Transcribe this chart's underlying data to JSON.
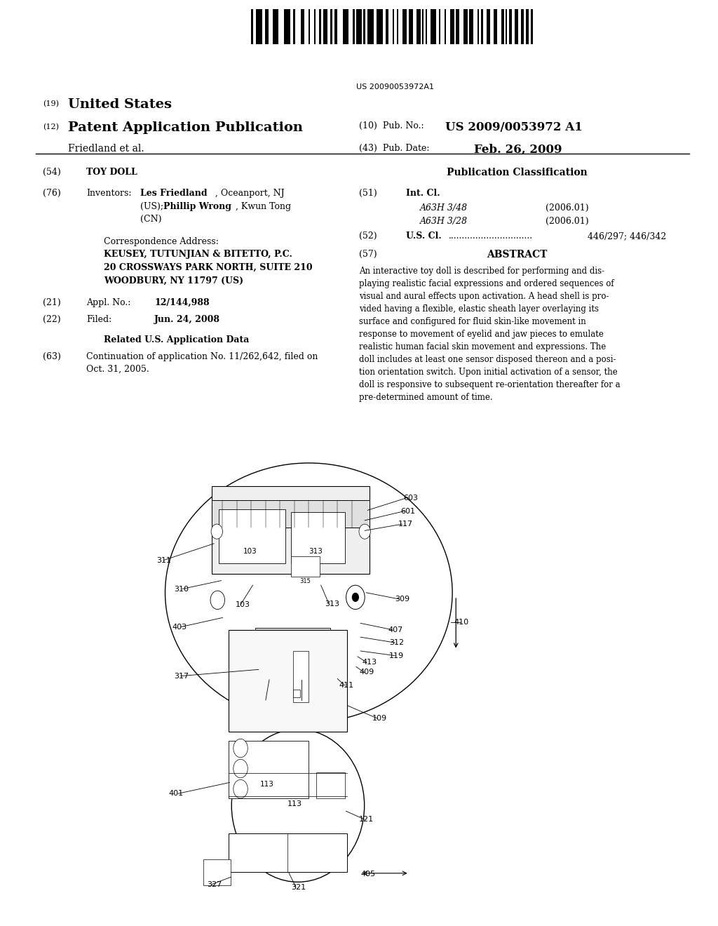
{
  "background_color": "#ffffff",
  "barcode_text": "US 20090053972A1",
  "pub_no": "US 2009/0053972 A1",
  "pub_date": "Feb. 26, 2009",
  "abstract_text": "An interactive toy doll is described for performing and dis-\nplaying realistic facial expressions and ordered sequences of\nvisual and aural effects upon activation. A head shell is pro-\nvided having a flexible, elastic sheath layer overlaying its\nsurface and configured for fluid skin-like movement in\nresponse to movement of eyelid and jaw pieces to emulate\nrealistic human facial skin movement and expressions. The\ndoll includes at least one sensor disposed thereon and a posi-\ntion orientation switch. Upon initial activation of a sensor, the\ndoll is responsive to subsequent re-orientation thereafter for a\npre-determined amount of time."
}
